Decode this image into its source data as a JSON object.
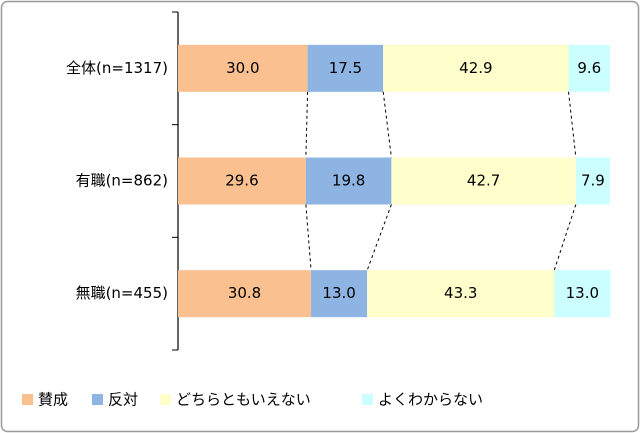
{
  "chart_data": {
    "type": "stacked-bar-horizontal",
    "categories": [
      "全体(n=1317)",
      "有職(n=862)",
      "無職(n=455)"
    ],
    "xlim": [
      0,
      100
    ],
    "series": [
      {
        "name": "賛成",
        "color": "#fac090",
        "values": [
          30.0,
          29.6,
          30.8
        ],
        "value_labels": [
          "30.0",
          "29.6",
          "30.8"
        ]
      },
      {
        "name": "反対",
        "color": "#8db4e2",
        "values": [
          17.5,
          19.8,
          13.0
        ],
        "value_labels": [
          "17.5",
          "19.8",
          "13.0"
        ]
      },
      {
        "name": "どちらともいえない",
        "color": "#ffffcc",
        "values": [
          42.9,
          42.7,
          43.3
        ],
        "value_labels": [
          "42.9",
          "42.7",
          "43.3"
        ]
      },
      {
        "name": "よくわからない",
        "color": "#ccffff",
        "values": [
          9.6,
          7.9,
          13.0
        ],
        "value_labels": [
          "9.6",
          "7.9",
          "13.0"
        ]
      }
    ],
    "legend": "bottom"
  }
}
